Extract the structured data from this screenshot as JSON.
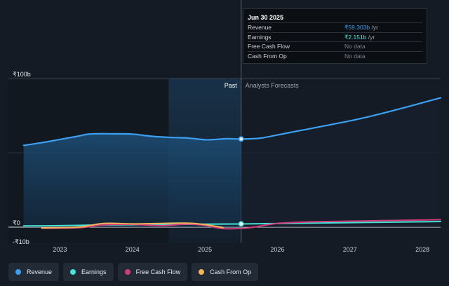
{
  "chart_data": {
    "type": "line",
    "yaxis": {
      "min": -10,
      "max": 100,
      "tick_labels": [
        "₹100b",
        "₹0",
        "-₹10b"
      ]
    },
    "xaxis": {
      "min": 2022.29,
      "max": 2028.25,
      "tick_labels": [
        "2023",
        "2024",
        "2025",
        "2026",
        "2027",
        "2028"
      ],
      "tick_values": [
        2023,
        2024,
        2025,
        2026,
        2027,
        2028
      ]
    },
    "past_label": "Past",
    "forecast_label": "Analysts Forecasts",
    "divider_x": 2025.5,
    "highlight_range": [
      2024.5,
      2025.5
    ],
    "series": [
      {
        "name": "Revenue",
        "color": "#3d9ff0",
        "x": [
          2022.5,
          2022.75,
          2023.0,
          2023.25,
          2023.42,
          2023.75,
          2024.0,
          2024.25,
          2024.5,
          2024.75,
          2025.0,
          2025.15,
          2025.3,
          2025.5,
          2025.75,
          2026.0,
          2026.25,
          2026.5,
          2026.75,
          2027.0,
          2027.25,
          2027.5,
          2027.75,
          2028.0,
          2028.25
        ],
        "values": [
          55.0,
          56.8,
          59.0,
          61.2,
          62.7,
          62.8,
          62.6,
          61.2,
          60.4,
          60.0,
          58.8,
          59.0,
          59.5,
          59.3,
          59.8,
          62.0,
          64.4,
          66.7,
          69.1,
          71.5,
          74.2,
          77.2,
          80.4,
          83.7,
          87.0
        ]
      },
      {
        "name": "Earnings",
        "color": "#46e2d8",
        "x": [
          2022.5,
          2023.0,
          2023.5,
          2024.0,
          2024.5,
          2025.0,
          2025.5,
          2026.0,
          2026.5,
          2027.0,
          2027.5,
          2028.0,
          2028.25
        ],
        "values": [
          0.8,
          1.0,
          1.4,
          1.6,
          1.8,
          2.0,
          2.151,
          2.4,
          2.7,
          3.0,
          3.3,
          3.6,
          3.8
        ]
      },
      {
        "name": "Free Cash Flow",
        "color": "#d43b7a",
        "x": [
          2022.75,
          2023.25,
          2023.6,
          2024.0,
          2024.4,
          2024.75,
          2025.0,
          2025.25,
          2025.6,
          2026.0,
          2026.5,
          2027.0,
          2027.5,
          2028.0,
          2028.25
        ],
        "values": [
          -0.8,
          -0.5,
          1.5,
          1.8,
          1.0,
          2.0,
          1.2,
          -1.0,
          -0.5,
          2.5,
          3.6,
          4.0,
          4.4,
          4.8,
          5.0
        ]
      },
      {
        "name": "Cash From Op",
        "color": "#f0b35c",
        "x": [
          2022.75,
          2023.0,
          2023.3,
          2023.6,
          2024.0,
          2024.3,
          2024.75,
          2025.0,
          2025.25
        ],
        "values": [
          -0.5,
          -0.3,
          0.2,
          2.5,
          2.2,
          2.4,
          2.7,
          1.7,
          -0.3
        ]
      }
    ]
  },
  "tooltip": {
    "date": "Jun 30 2025",
    "rows": [
      {
        "name": "Revenue",
        "value": "₹59.303b",
        "unit": " /yr",
        "color": "#3d9ff0"
      },
      {
        "name": "Earnings",
        "value": "₹2.151b",
        "unit": " /yr",
        "color": "#46e2d8"
      },
      {
        "name": "Free Cash Flow",
        "value": "No data",
        "unit": "",
        "color": "#7c838d"
      },
      {
        "name": "Cash From Op",
        "value": "No data",
        "unit": "",
        "color": "#7c838d"
      }
    ]
  },
  "legend": [
    {
      "name": "Revenue",
      "color": "#3d9ff0"
    },
    {
      "name": "Earnings",
      "color": "#46e2d8"
    },
    {
      "name": "Free Cash Flow",
      "color": "#d43b7a"
    },
    {
      "name": "Cash From Op",
      "color": "#f0b35c"
    }
  ]
}
